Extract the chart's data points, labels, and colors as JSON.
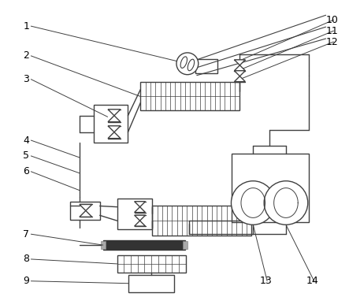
{
  "bg_color": "#ffffff",
  "line_color": "#404040",
  "label_color": "#000000",
  "figsize": [
    4.43,
    3.77
  ],
  "dpi": 100
}
